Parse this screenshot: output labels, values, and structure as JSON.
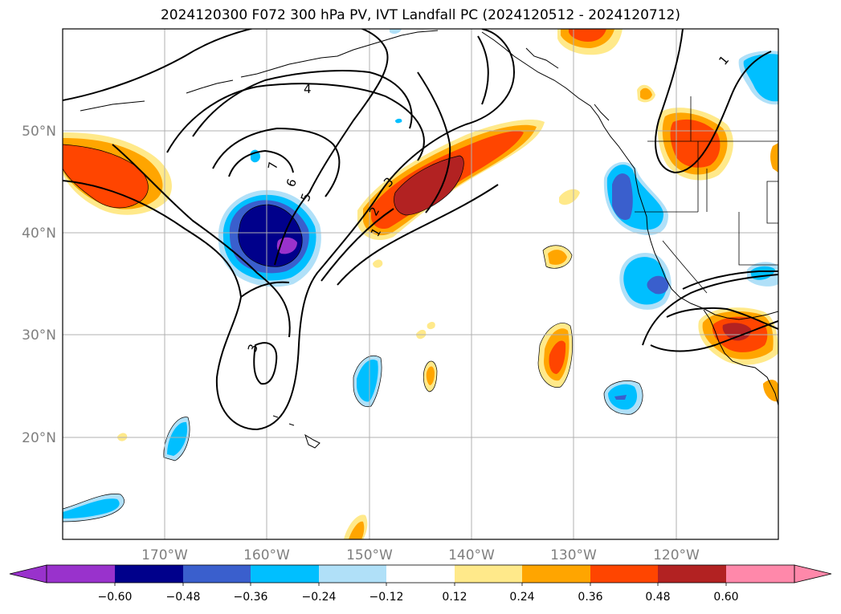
{
  "title": "2024120300 F072 300 hPa PV, IVT Landfall PC (2024120512 - 2024120712)",
  "map": {
    "lat_labels": [
      "50°N",
      "40°N",
      "30°N",
      "20°N"
    ],
    "lon_labels": [
      "170°W",
      "160°W",
      "150°W",
      "140°W",
      "130°W",
      "120°W"
    ],
    "contour_labels": [
      "1",
      "2",
      "3",
      "4",
      "5",
      "6",
      "7",
      "3",
      "1"
    ]
  },
  "colorbar": {
    "tick_labels": [
      "−0.60",
      "−0.48",
      "−0.36",
      "−0.24",
      "−0.12",
      "0.12",
      "0.24",
      "0.36",
      "0.48",
      "0.60"
    ],
    "colors": [
      "#9932cc",
      "#00008b",
      "#3a5fcd",
      "#00bfff",
      "#b0e0f8",
      "#ffffff",
      "#ffe98a",
      "#ffa500",
      "#ff4500",
      "#b22222",
      "#ff88aa"
    ]
  }
}
